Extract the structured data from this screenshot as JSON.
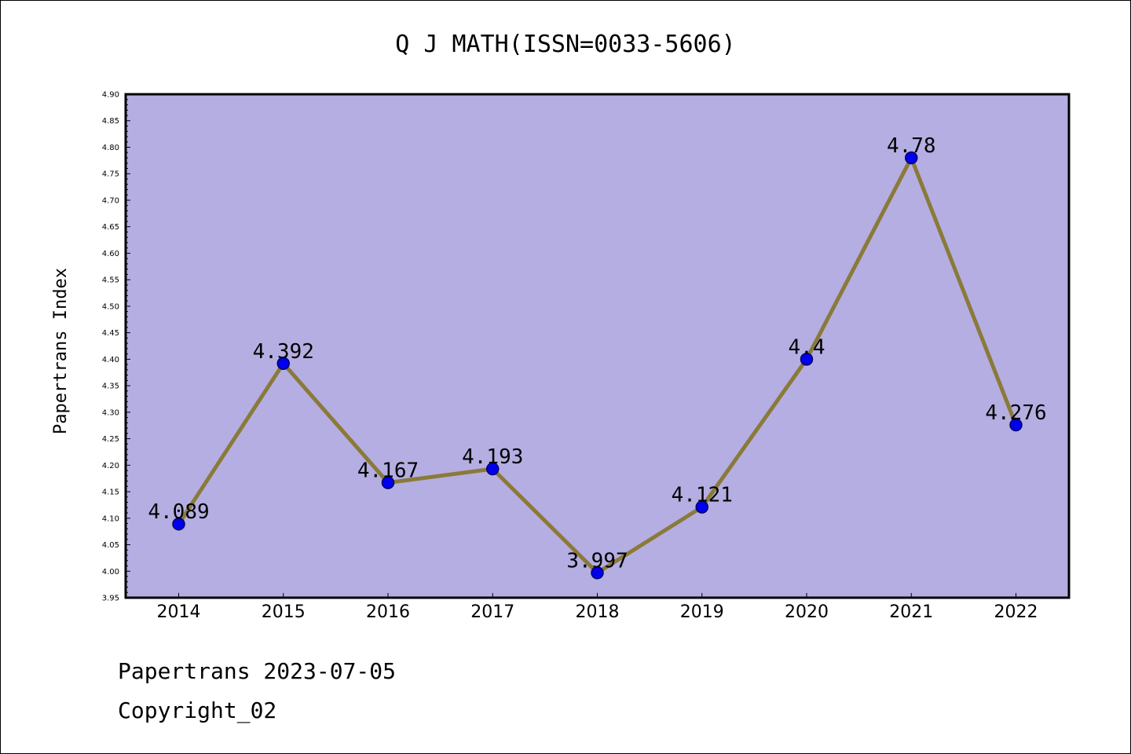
{
  "colors": {
    "plot_background": "#b5aee2",
    "line": "#8a7a3a",
    "marker_fill": "#0000ee",
    "marker_edge": "#000066"
  },
  "footer": {
    "line1": "Papertrans 2023-07-05",
    "line2": "Copyright_02"
  },
  "chart_data": {
    "type": "line",
    "title": "Q J MATH(ISSN=0033-5606)",
    "xlabel": "",
    "ylabel": "Papertrans Index",
    "categories": [
      "2014",
      "2015",
      "2016",
      "2017",
      "2018",
      "2019",
      "2020",
      "2021",
      "2022"
    ],
    "values": [
      4.089,
      4.392,
      4.167,
      4.193,
      3.997,
      4.121,
      4.4,
      4.78,
      4.276
    ],
    "data_labels": [
      "4.089",
      "4.392",
      "4.167",
      "4.193",
      "3.997",
      "4.121",
      "4.4",
      "4.78",
      "4.276"
    ],
    "ylim": [
      3.95,
      4.9
    ],
    "yticks": [
      "3.95",
      "4.00",
      "4.05",
      "4.10",
      "4.15",
      "4.20",
      "4.25",
      "4.30",
      "4.35",
      "4.40",
      "4.45",
      "4.50",
      "4.55",
      "4.60",
      "4.65",
      "4.70",
      "4.75",
      "4.80",
      "4.85",
      "4.90"
    ],
    "grid": false,
    "legend": "none"
  }
}
